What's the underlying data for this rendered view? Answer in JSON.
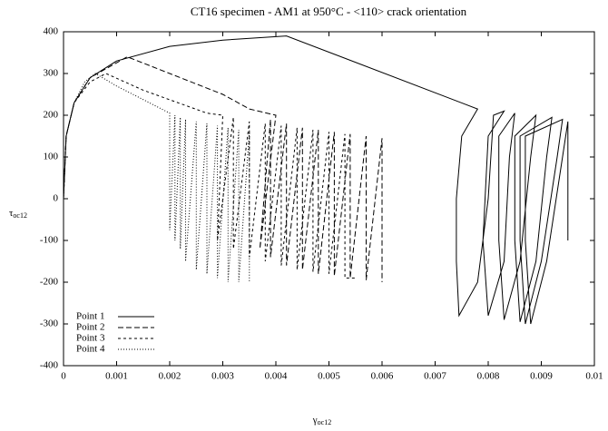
{
  "chart_data": {
    "type": "line",
    "title": "CT16 specimen - AM1 at 950°C - <110> crack orientation",
    "x_label": {
      "symbol": "γ",
      "subscript": "oc12"
    },
    "y_label": {
      "symbol": "τ",
      "subscript": "oc12"
    },
    "xlim": [
      0,
      0.01
    ],
    "xticks": [
      0,
      0.001,
      0.002,
      0.003,
      0.004,
      0.005,
      0.006,
      0.007,
      0.008,
      0.009,
      0.01
    ],
    "ylim": [
      -400,
      400
    ],
    "yticks": [
      -400,
      -300,
      -200,
      -100,
      0,
      100,
      200,
      300,
      400
    ],
    "legend": "bottom-left",
    "series": [
      {
        "name": "Point 1",
        "color": "#000000",
        "dash": "none",
        "x": [
          0,
          5e-05,
          0.0002,
          0.0005,
          0.001,
          0.002,
          0.003,
          0.0042,
          0.0078,
          0.0075,
          0.0074,
          0.0074,
          0.00745,
          0.0078,
          0.008,
          0.0081,
          0.0083,
          0.008,
          0.0079,
          0.008,
          0.0083,
          0.0084,
          0.0085,
          0.0082,
          0.0082,
          0.0083,
          0.0086,
          0.0088,
          0.0089,
          0.0085,
          0.0085,
          0.0086,
          0.0089,
          0.0091,
          0.0092,
          0.0086,
          0.0086,
          0.0087,
          0.009,
          0.0093,
          0.0094,
          0.0087,
          0.0087,
          0.0088,
          0.0091,
          0.0094,
          0.0095,
          0.0095
        ],
        "y": [
          0,
          150,
          230,
          290,
          330,
          365,
          380,
          390,
          215,
          150,
          0,
          -150,
          -280,
          -200,
          0,
          200,
          210,
          150,
          -100,
          -280,
          -150,
          100,
          205,
          150,
          -100,
          -290,
          -150,
          100,
          200,
          150,
          -100,
          -295,
          -150,
          100,
          195,
          150,
          -100,
          -300,
          -150,
          100,
          190,
          150,
          -100,
          -300,
          -150,
          100,
          185,
          -100
        ]
      },
      {
        "name": "Point 2",
        "color": "#000000",
        "dash": "6,3",
        "x": [
          0,
          5e-05,
          0.0002,
          0.0005,
          0.0012,
          0.002,
          0.003,
          0.0035,
          0.004,
          0.0037,
          0.0039,
          0.0039,
          0.0042,
          0.0042,
          0.0045,
          0.0045,
          0.0048,
          0.0048,
          0.0051,
          0.0051,
          0.0054,
          0.0054,
          0.0057,
          0.0057,
          0.006,
          0.006
        ],
        "y": [
          0,
          150,
          230,
          290,
          340,
          300,
          250,
          215,
          200,
          -120,
          190,
          -140,
          180,
          -160,
          170,
          -170,
          165,
          -180,
          160,
          -185,
          155,
          -190,
          150,
          -195,
          145,
          -200
        ]
      },
      {
        "name": "Point 3",
        "color": "#000000",
        "dash": "3,3",
        "x": [
          0,
          5e-05,
          0.0002,
          0.0005,
          0.0008,
          0.0015,
          0.0027,
          0.003,
          0.0029,
          0.0032,
          0.0032,
          0.0035,
          0.0035,
          0.0038,
          0.0038,
          0.0041,
          0.0041,
          0.0044,
          0.0044,
          0.0047,
          0.0047,
          0.005,
          0.005,
          0.0053,
          0.0053,
          0.0055
        ],
        "y": [
          0,
          150,
          230,
          280,
          300,
          260,
          205,
          200,
          -100,
          195,
          -120,
          185,
          -140,
          180,
          -150,
          175,
          -160,
          170,
          -170,
          165,
          -175,
          160,
          -180,
          155,
          -190,
          -190
        ]
      },
      {
        "name": "Point 4",
        "color": "#000000",
        "dash": "1,2",
        "x": [
          0,
          5e-05,
          0.0002,
          0.0004,
          0.0006,
          0.001,
          0.002,
          0.002,
          0.0021,
          0.0021,
          0.0022,
          0.0022,
          0.0023,
          0.0023,
          0.0025,
          0.0025,
          0.0027,
          0.0027,
          0.0029,
          0.0029,
          0.0031,
          0.0031,
          0.0033,
          0.0033,
          0.0035,
          0.0035
        ],
        "y": [
          0,
          150,
          230,
          280,
          300,
          270,
          205,
          -75,
          200,
          -100,
          195,
          -120,
          190,
          -150,
          185,
          -170,
          180,
          -180,
          175,
          -190,
          170,
          -200,
          165,
          -200,
          160,
          -200
        ]
      }
    ]
  }
}
